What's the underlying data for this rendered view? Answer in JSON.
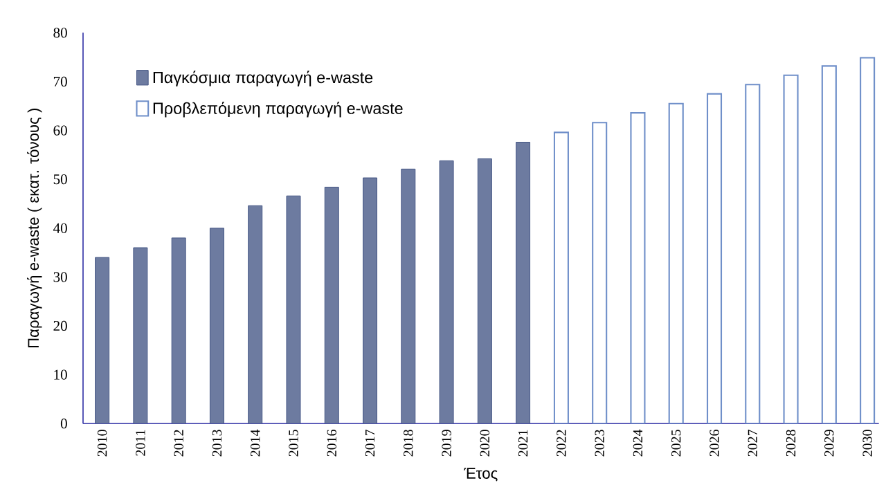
{
  "chart_data": {
    "type": "bar",
    "xlabel": "Έτος",
    "ylabel": "Παραγωγή e-waste ( εκατ. τόνους )",
    "categories": [
      "2010",
      "2011",
      "2012",
      "2013",
      "2014",
      "2015",
      "2016",
      "2017",
      "2018",
      "2019",
      "2020",
      "2021",
      "2022",
      "2023",
      "2024",
      "2025",
      "2026",
      "2027",
      "2028",
      "2029",
      "2030"
    ],
    "series": [
      {
        "name": "Παγκόσμια παραγωγή e-waste",
        "color": "#3d4f80",
        "values": [
          34,
          36,
          38,
          40,
          44.6,
          46.6,
          48.4,
          50.3,
          52.1,
          53.8,
          54.2,
          57.6,
          null,
          null,
          null,
          null,
          null,
          null,
          null,
          null,
          null
        ]
      },
      {
        "name": "Προβλεπόμενη παραγωγή e-waste",
        "color": "#6f8fc9",
        "values": [
          null,
          null,
          null,
          null,
          null,
          null,
          null,
          null,
          null,
          null,
          null,
          null,
          59.6,
          61.6,
          63.6,
          65.5,
          67.5,
          69.4,
          71.3,
          73.2,
          74.9
        ]
      }
    ],
    "ylim": [
      0,
      80
    ],
    "yticks": [
      0,
      10,
      20,
      30,
      40,
      50,
      60,
      70,
      80
    ],
    "legend": "top left"
  }
}
